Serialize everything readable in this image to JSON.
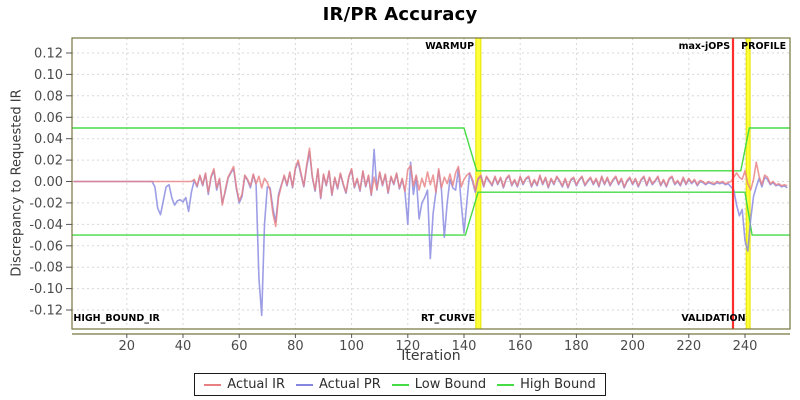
{
  "title": "IR/PR Accuracy",
  "chart_data": {
    "type": "line",
    "title": "IR/PR Accuracy",
    "xlabel": "Iteration",
    "ylabel": "Discrepancy to Requested IR",
    "grid": true,
    "legend_position": "bottom",
    "xlim": [
      0.5,
      256
    ],
    "ylim": [
      -0.1377,
      0.134
    ],
    "x_ticks": [
      20,
      40,
      60,
      80,
      100,
      120,
      140,
      160,
      180,
      200,
      220,
      240
    ],
    "y_ticks": [
      0.12,
      0.1,
      0.08,
      0.06,
      0.04,
      0.02,
      0.0,
      -0.02,
      -0.04,
      -0.06,
      -0.08,
      -0.1,
      -0.12
    ],
    "x_start": 1,
    "y_scale": 0.001,
    "series": [
      {
        "name": "Actual IR",
        "color": "#e88082",
        "values": [
          0,
          0,
          0,
          0,
          0,
          0,
          0,
          0,
          0,
          0,
          0,
          0,
          0,
          0,
          0,
          0,
          0,
          0,
          0,
          0,
          0,
          0,
          0,
          0,
          0,
          0,
          0,
          0,
          0,
          0,
          0,
          0,
          0,
          0,
          0,
          0,
          0,
          0,
          0,
          0,
          0,
          0,
          0,
          2,
          -4,
          6,
          -3,
          8,
          -10,
          5,
          12,
          -6,
          3,
          -22,
          -8,
          4,
          9,
          14,
          -5,
          -18,
          -12,
          6,
          2,
          -4,
          7,
          -2,
          5,
          -6,
          3,
          -1,
          -8,
          -30,
          -42,
          -15,
          -4,
          6,
          -3,
          9,
          -5,
          13,
          20,
          8,
          -4,
          15,
          31,
          5,
          -8,
          12,
          -15,
          7,
          -3,
          10,
          -12,
          4,
          -6,
          8,
          -2,
          -10,
          5,
          12,
          -5,
          3,
          -8,
          10,
          -4,
          6,
          -12,
          4,
          -7,
          9,
          -3,
          7,
          -10,
          5,
          -2,
          8,
          -6,
          3,
          -9,
          11,
          15,
          -4,
          6,
          -8,
          3,
          -5,
          9,
          -3,
          6,
          -10,
          12,
          -6,
          4,
          -2,
          7,
          -4,
          8,
          14,
          -5,
          2,
          6,
          8,
          2,
          -8,
          3,
          6,
          -4,
          5,
          1,
          -3,
          5,
          -2,
          4,
          -5,
          3,
          6,
          -3,
          2,
          -4,
          5,
          -2,
          3,
          5,
          -4,
          2,
          -3,
          6,
          -2,
          4,
          -5,
          3,
          -2,
          5,
          1,
          -4,
          3,
          -5,
          2,
          4,
          -3,
          2,
          5,
          -3,
          1,
          4,
          -2,
          3,
          -4,
          5,
          -2,
          4,
          -3,
          2,
          5,
          -2,
          3,
          -5,
          1,
          4,
          -2,
          3,
          -4,
          2,
          5,
          -3,
          4,
          -2,
          1,
          5,
          -3,
          2,
          -4,
          3,
          5,
          -2,
          1,
          -3,
          4,
          -2,
          3,
          -1,
          2,
          -3,
          1,
          0,
          -2,
          0,
          -1,
          -2,
          0,
          -1,
          0,
          -2,
          -1,
          0,
          4,
          8,
          4,
          2,
          10,
          -2,
          -8,
          2,
          18,
          5,
          -3,
          6,
          4,
          -2,
          0,
          -3,
          -2,
          -4,
          -3,
          -4
        ]
      },
      {
        "name": "Actual PR",
        "color": "#8486e0",
        "values": [
          0,
          0,
          0,
          0,
          0,
          0,
          0,
          0,
          0,
          0,
          0,
          0,
          0,
          0,
          0,
          0,
          0,
          0,
          0,
          0,
          0,
          0,
          0,
          0,
          0,
          0,
          0,
          0,
          0,
          -5,
          -25,
          -31,
          -18,
          -5,
          -3,
          -15,
          -22,
          -18,
          -17,
          -19,
          -15,
          -28,
          -10,
          1,
          -5,
          5,
          -4,
          7,
          -12,
          4,
          10,
          -8,
          2,
          -20,
          -10,
          3,
          8,
          12,
          -7,
          -20,
          -14,
          5,
          1,
          -6,
          6,
          -3,
          -90,
          -125,
          -40,
          -5,
          -6,
          -25,
          -38,
          -12,
          -3,
          5,
          -4,
          8,
          -6,
          12,
          18,
          6,
          -5,
          13,
          28,
          4,
          -9,
          11,
          -16,
          6,
          -4,
          9,
          -13,
          3,
          -7,
          7,
          -3,
          -11,
          4,
          11,
          -6,
          2,
          -9,
          9,
          -5,
          5,
          -13,
          30,
          -8,
          8,
          -4,
          6,
          -11,
          4,
          -3,
          7,
          -7,
          2,
          -10,
          -40,
          18,
          -12,
          5,
          -35,
          -20,
          -15,
          -8,
          -72,
          -30,
          -10,
          10,
          -8,
          -52,
          -20,
          2,
          -6,
          -8,
          12,
          -20,
          -48,
          -20,
          8,
          0,
          -10,
          2,
          5,
          -5,
          4,
          0,
          -4,
          4,
          -3,
          3,
          -6,
          2,
          5,
          -4,
          1,
          -5,
          4,
          -3,
          2,
          4,
          -5,
          1,
          -4,
          5,
          -3,
          3,
          -6,
          2,
          -3,
          4,
          0,
          -5,
          2,
          -6,
          1,
          3,
          -4,
          1,
          4,
          -4,
          0,
          3,
          -3,
          2,
          -5,
          4,
          -3,
          3,
          -4,
          1,
          4,
          -3,
          2,
          -6,
          0,
          3,
          -3,
          2,
          -5,
          1,
          4,
          -4,
          3,
          -3,
          0,
          4,
          -4,
          1,
          -5,
          2,
          4,
          -3,
          0,
          -4,
          3,
          -3,
          2,
          -2,
          1,
          -4,
          0,
          -1,
          -3,
          -1,
          -2,
          -3,
          -1,
          -2,
          -1,
          -3,
          -2,
          -5,
          -8,
          -22,
          -32,
          -26,
          -55,
          -65,
          -35,
          -14,
          -5,
          3,
          -5,
          4,
          2,
          -3,
          -1,
          -4,
          -3,
          -5,
          -4,
          -6
        ]
      },
      {
        "name": "Low Bound",
        "color": "#46dc46",
        "points": [
          [
            0.5,
            -50
          ],
          [
            140.5,
            -50
          ],
          [
            145,
            -10
          ],
          [
            240,
            -10
          ],
          [
            242.5,
            -50
          ],
          [
            256,
            -50
          ]
        ]
      },
      {
        "name": "High Bound",
        "color": "#46dc46",
        "points": [
          [
            0.5,
            50
          ],
          [
            140,
            50
          ],
          [
            144.5,
            10
          ],
          [
            238.5,
            10
          ],
          [
            241.5,
            50
          ],
          [
            256,
            50
          ]
        ]
      }
    ],
    "markers": {
      "bands": [
        {
          "name": "warmup-band",
          "x0": 144.2,
          "x1": 146.0,
          "color": "#ffff3a",
          "edge": "#e4e400"
        },
        {
          "name": "profile-band",
          "x0": 240.4,
          "x1": 241.8,
          "color": "#ffff3a",
          "edge": "#e4e400"
        }
      ],
      "lines": [
        {
          "name": "max-jops-line",
          "x": 235.7,
          "color": "#ff2e2e"
        }
      ]
    },
    "annotations": [
      {
        "text": "WARMUP",
        "x": 143.6,
        "v": "top",
        "a": "right"
      },
      {
        "text": "max-jOPS",
        "x": 234.7,
        "v": "top",
        "a": "right"
      },
      {
        "text": "PROFILE",
        "x": 254.6,
        "v": "top",
        "a": "right"
      },
      {
        "text": "HIGH_BOUND_IR",
        "x": 1,
        "v": "bottom",
        "a": "left"
      },
      {
        "text": "RT_CURVE",
        "x": 143.9,
        "v": "bottom",
        "a": "right"
      },
      {
        "text": "VALIDATION",
        "x": 240.2,
        "v": "bottom",
        "a": "right"
      }
    ],
    "style": {
      "grid_color": "#d7d7d7",
      "border_color": "#76763d",
      "tick_label_color": "#4b4b4b",
      "annotation_color": "#000000"
    }
  }
}
